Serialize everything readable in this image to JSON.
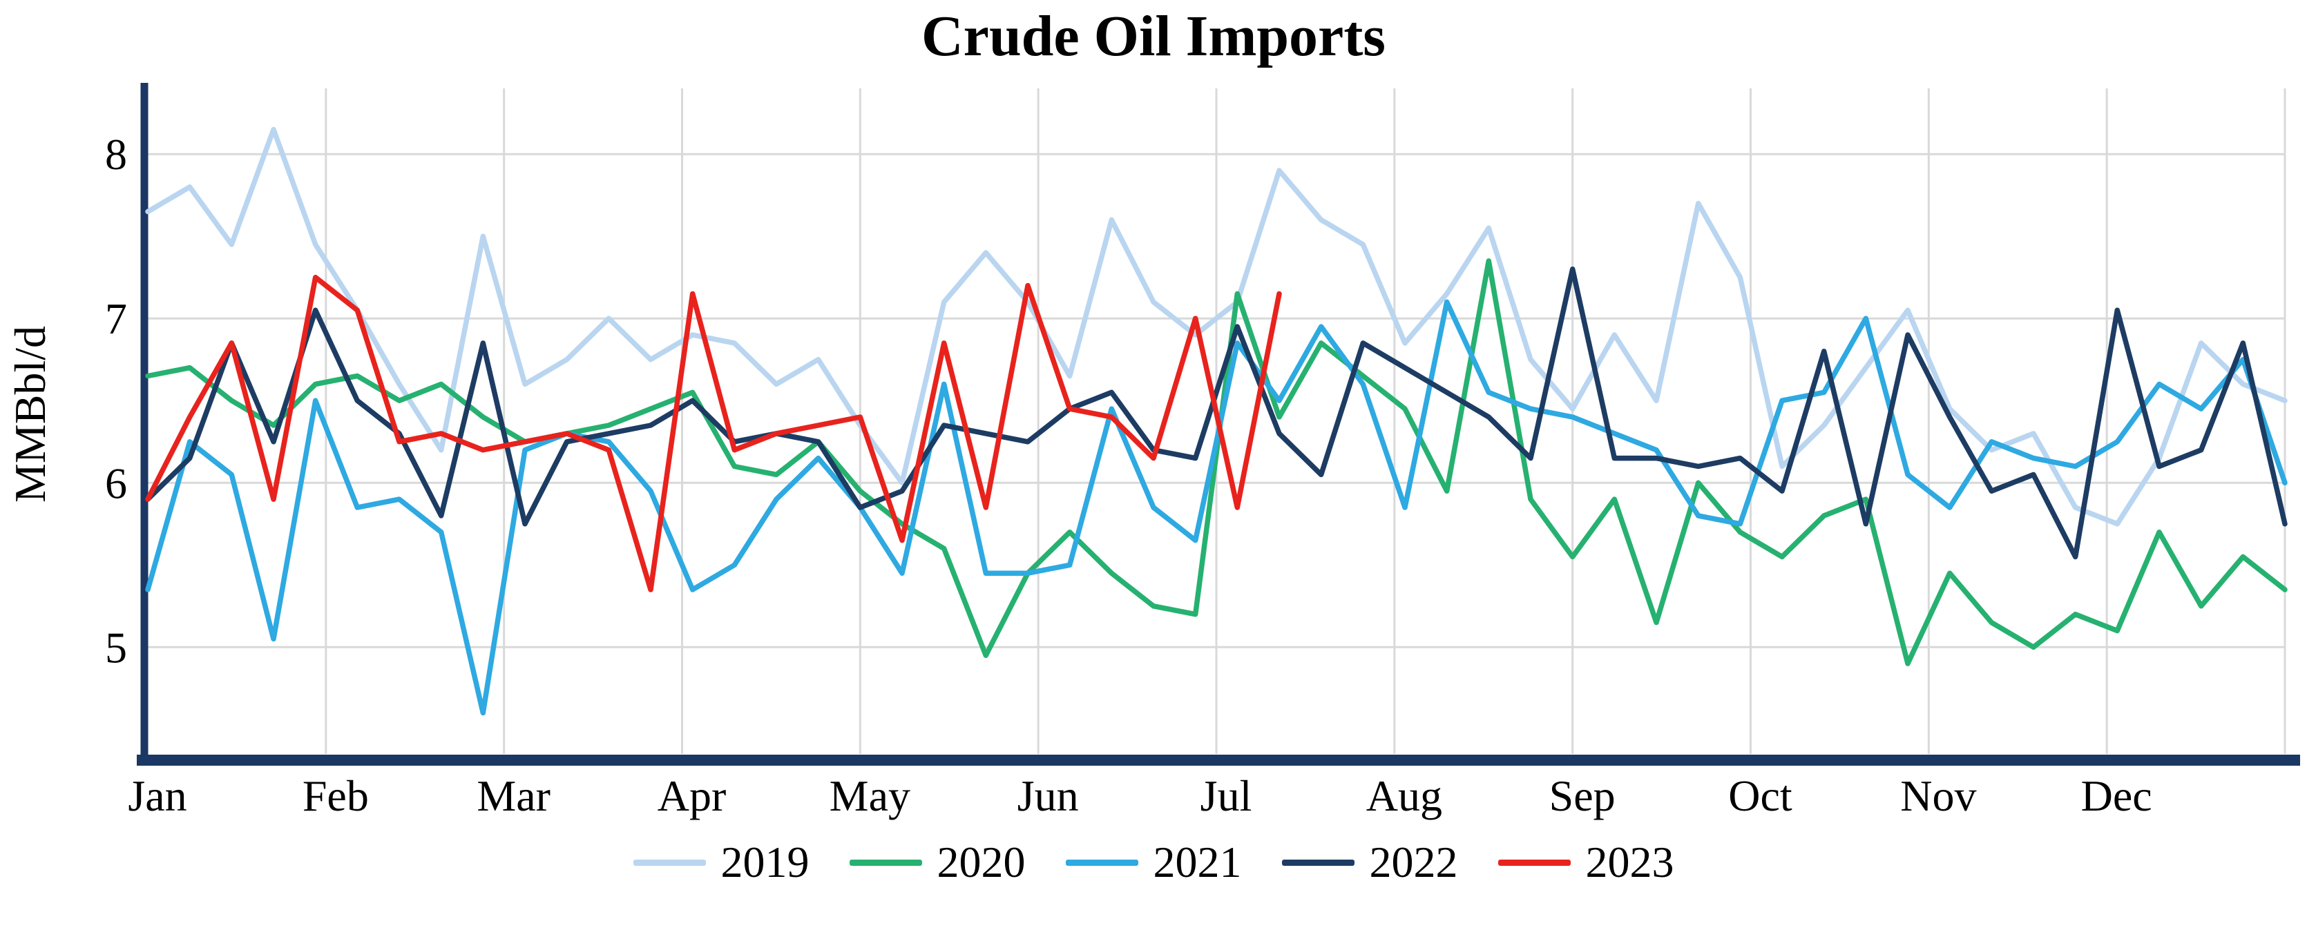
{
  "chart_data": {
    "type": "line",
    "title": "Crude Oil Imports",
    "xlabel": "",
    "ylabel": "MMBbl/d",
    "x_unit": "week-of-year",
    "x_tick_labels": [
      "Jan",
      "Feb",
      "Mar",
      "Apr",
      "May",
      "Jun",
      "Jul",
      "Aug",
      "Sep",
      "Oct",
      "Nov",
      "Dec"
    ],
    "y_ticks": [
      5,
      6,
      7,
      8
    ],
    "ylim": [
      4.35,
      8.4
    ],
    "weeks_per_year": 52,
    "grid": true,
    "legend_position": "bottom",
    "axis_color": "#1b3764",
    "grid_color": "#d9d9d9",
    "series": [
      {
        "name": "2019",
        "color": "#b9d5f0",
        "values": [
          7.65,
          7.8,
          7.45,
          8.15,
          7.45,
          7.05,
          6.6,
          6.2,
          7.5,
          6.6,
          6.75,
          7.0,
          6.75,
          6.9,
          6.85,
          6.6,
          6.75,
          6.35,
          6.0,
          7.1,
          7.4,
          7.1,
          6.65,
          7.6,
          7.1,
          6.9,
          7.1,
          7.9,
          7.6,
          7.45,
          6.85,
          7.15,
          7.55,
          6.75,
          6.45,
          6.9,
          6.5,
          7.7,
          7.25,
          6.1,
          6.35,
          6.7,
          7.05,
          6.45,
          6.2,
          6.3,
          5.85,
          5.75,
          6.15,
          6.85,
          6.6,
          6.5
        ]
      },
      {
        "name": "2020",
        "color": "#26b170",
        "values": [
          6.65,
          6.7,
          6.5,
          6.35,
          6.6,
          6.65,
          6.5,
          6.6,
          6.4,
          6.25,
          6.3,
          6.35,
          6.45,
          6.55,
          6.1,
          6.05,
          6.25,
          5.95,
          5.75,
          5.6,
          4.95,
          5.45,
          5.7,
          5.45,
          5.25,
          5.2,
          7.15,
          6.4,
          6.85,
          6.65,
          6.45,
          5.95,
          7.35,
          5.9,
          5.55,
          5.9,
          5.15,
          6.0,
          5.7,
          5.55,
          5.8,
          5.9,
          4.9,
          5.45,
          5.15,
          5.0,
          5.2,
          5.1,
          5.7,
          5.25,
          5.55,
          5.35
        ]
      },
      {
        "name": "2021",
        "color": "#2ea9e1",
        "values": [
          5.35,
          6.25,
          6.05,
          5.05,
          6.5,
          5.85,
          5.9,
          5.7,
          4.6,
          6.2,
          6.3,
          6.25,
          5.95,
          5.35,
          5.5,
          5.9,
          6.15,
          5.85,
          5.45,
          6.6,
          5.45,
          5.45,
          5.5,
          6.45,
          5.85,
          5.65,
          6.85,
          6.5,
          6.95,
          6.6,
          5.85,
          7.1,
          6.55,
          6.45,
          6.4,
          6.3,
          6.2,
          5.8,
          5.75,
          6.5,
          6.55,
          7.0,
          6.05,
          5.85,
          6.25,
          6.15,
          6.1,
          6.25,
          6.6,
          6.45,
          6.75,
          6.0
        ]
      },
      {
        "name": "2022",
        "color": "#1d3c63",
        "values": [
          5.9,
          6.15,
          6.85,
          6.25,
          7.05,
          6.5,
          6.3,
          5.8,
          6.85,
          5.75,
          6.25,
          6.3,
          6.35,
          6.5,
          6.25,
          6.3,
          6.25,
          5.85,
          5.95,
          6.35,
          6.3,
          6.25,
          6.45,
          6.55,
          6.2,
          6.15,
          6.95,
          6.3,
          6.05,
          6.85,
          6.7,
          6.55,
          6.4,
          6.15,
          7.3,
          6.15,
          6.15,
          6.1,
          6.15,
          5.95,
          6.8,
          5.75,
          6.9,
          6.4,
          5.95,
          6.05,
          5.55,
          7.05,
          6.1,
          6.2,
          6.85,
          5.75
        ]
      },
      {
        "name": "2023",
        "color": "#e8231d",
        "values": [
          5.9,
          6.4,
          6.85,
          5.9,
          7.25,
          7.05,
          6.25,
          6.3,
          6.2,
          6.25,
          6.3,
          6.2,
          5.35,
          7.15,
          6.2,
          6.3,
          6.35,
          6.4,
          5.65,
          6.85,
          5.85,
          7.2,
          6.45,
          6.4,
          6.15,
          7.0,
          5.85,
          7.15
        ]
      }
    ]
  },
  "legend": {
    "items": [
      "2019",
      "2020",
      "2021",
      "2022",
      "2023"
    ]
  }
}
